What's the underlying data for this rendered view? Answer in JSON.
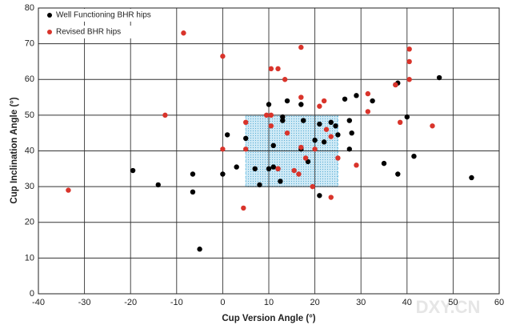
{
  "chart_data": {
    "type": "scatter",
    "x_label": "Cup Version Angle (°)",
    "y_label": "Cup Inclination Angle (°)",
    "xlim": [
      -40,
      60
    ],
    "xticks": [
      -40,
      -30,
      -20,
      -10,
      0,
      10,
      20,
      30,
      40,
      50,
      60
    ],
    "ylim": [
      0,
      80
    ],
    "yticks": [
      0,
      10,
      20,
      30,
      40,
      50,
      60,
      70,
      80
    ],
    "grid": true,
    "legend": "top-left",
    "zone": {
      "x": [
        5,
        25
      ],
      "y": [
        30,
        50
      ],
      "color": "#7ec8e8"
    },
    "watermark": "DXY.CN",
    "series": [
      {
        "name": "Well Functioning BHR hips",
        "color": "#000000",
        "x": [
          -19.5,
          -14,
          -6.5,
          -6.5,
          -5,
          0,
          1,
          3,
          5,
          7,
          8,
          10,
          11,
          10,
          11,
          12,
          12.5,
          13,
          13,
          14,
          17,
          17.5,
          17,
          18.5,
          20,
          21,
          21,
          22,
          23.5,
          24.5,
          25,
          26.5,
          27.5,
          27.5,
          28,
          29,
          32.5,
          35,
          38,
          37.5,
          38,
          40,
          41.5,
          47,
          54
        ],
        "values": [
          34.5,
          30.5,
          33.5,
          28.5,
          12.5,
          33.5,
          44.5,
          35.5,
          43.5,
          35,
          30.5,
          35,
          35.5,
          53,
          41.5,
          35,
          31.5,
          48.5,
          49.5,
          54,
          53,
          48.5,
          40.5,
          37,
          43,
          47.5,
          27.5,
          42.5,
          48,
          47,
          44.5,
          54.5,
          48.5,
          40.5,
          45,
          55.5,
          54,
          36.5,
          33.5,
          58.5,
          59,
          49.5,
          38.5,
          60.5,
          32.5
        ]
      },
      {
        "name": "Revised BHR hips",
        "color": "#d9342b",
        "x": [
          -33.5,
          -12.5,
          -8.5,
          0,
          0,
          4.5,
          5,
          5,
          9.5,
          10.5,
          10.5,
          10.5,
          12,
          13.5,
          12,
          14,
          15.5,
          16.5,
          17,
          17,
          17,
          18,
          19.5,
          20,
          21,
          22,
          22.5,
          23.5,
          23.5,
          25,
          29,
          31.5,
          31.5,
          37.5,
          38.5,
          40.5,
          40.5,
          40.5,
          45.5
        ],
        "values": [
          29,
          50,
          73,
          66.5,
          40.5,
          24,
          48,
          40.5,
          50,
          50,
          47,
          63,
          63,
          60,
          35,
          45,
          34.5,
          33.5,
          69,
          55,
          41,
          38,
          30,
          40.5,
          52.5,
          54,
          46,
          44,
          27,
          38,
          36,
          56,
          51,
          58.5,
          48,
          68.5,
          65,
          60,
          47
        ]
      }
    ]
  }
}
